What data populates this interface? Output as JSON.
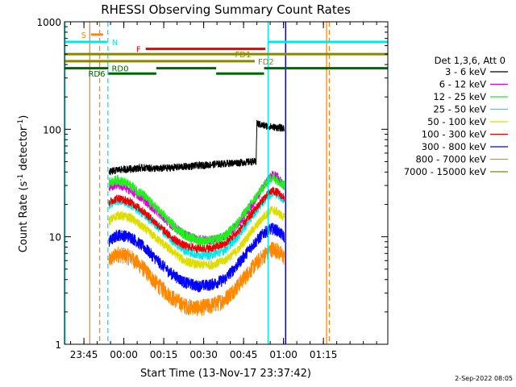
{
  "chart_data": {
    "type": "line",
    "title": "RHESSI Observing Summary Count Rates",
    "xlabel": "Start Time (13-Nov-17 23:37:42)",
    "ylabel_parts": [
      "Count Rate (s",
      "-1",
      " detector",
      "-1",
      ")"
    ],
    "x_unit": "minutes after start time",
    "xlim": [
      0,
      121.5
    ],
    "ylim": [
      1,
      1000
    ],
    "yscale": "log",
    "x_ticks": [
      {
        "x": 7.3,
        "label": "23:45"
      },
      {
        "x": 22.3,
        "label": "00:00"
      },
      {
        "x": 37.3,
        "label": "00:15"
      },
      {
        "x": 52.3,
        "label": "00:30"
      },
      {
        "x": 67.3,
        "label": "00:45"
      },
      {
        "x": 82.3,
        "label": "01:00"
      },
      {
        "x": 97.3,
        "label": "01:15"
      }
    ],
    "y_ticks": [
      {
        "y": 1,
        "label": "1"
      },
      {
        "y": 10,
        "label": "10"
      },
      {
        "y": 100,
        "label": "100"
      },
      {
        "y": 1000,
        "label": "1000"
      }
    ],
    "legend": {
      "position": "right",
      "title": "Det 1,3,6, Att 0",
      "entries": [
        {
          "label": "3 - 6 keV",
          "color": "#000000"
        },
        {
          "label": "6 - 12 keV",
          "color": "#e000e0"
        },
        {
          "label": "12 - 25 keV",
          "color": "#22ee22"
        },
        {
          "label": "25 - 50 keV",
          "color": "#00e8e8"
        },
        {
          "label": "50 - 100 keV",
          "color": "#dddd00"
        },
        {
          "label": "100 - 300 keV",
          "color": "#ee0000"
        },
        {
          "label": "300 - 800 keV",
          "color": "#0000ff"
        },
        {
          "label": "800 - 7000 keV",
          "color": "#ff8800"
        },
        {
          "label": "7000 - 15000 keV",
          "color": "#888800"
        }
      ]
    },
    "series": [
      {
        "name": "3 - 6 keV",
        "color": "#000000",
        "noise": 0.08,
        "x": [
          16.7,
          20,
          25,
          30,
          35,
          40,
          45,
          50,
          55,
          60,
          65,
          70,
          72,
          72.3,
          75,
          80,
          82.6
        ],
        "y": [
          40,
          42,
          43,
          44,
          43,
          44,
          45,
          46,
          47,
          48,
          49,
          50,
          50,
          113,
          108,
          104,
          102
        ]
      },
      {
        "name": "6 - 12 keV",
        "color": "#e000e0",
        "noise": 0.1,
        "x": [
          16.7,
          20,
          25,
          30,
          35,
          40,
          45,
          50,
          55,
          60,
          65,
          70,
          75,
          78,
          80,
          82.6
        ],
        "y": [
          29,
          31,
          27,
          22,
          17,
          13,
          10.5,
          9.5,
          9.3,
          10,
          13,
          19,
          30,
          38,
          36,
          30
        ]
      },
      {
        "name": "12 - 25 keV",
        "color": "#22ee22",
        "noise": 0.11,
        "x": [
          16.7,
          20,
          25,
          30,
          35,
          40,
          45,
          50,
          55,
          60,
          65,
          70,
          75,
          78,
          80,
          82.6
        ],
        "y": [
          32,
          34,
          30,
          24,
          18,
          13.5,
          10.5,
          9.3,
          9.2,
          10,
          13.5,
          20,
          30,
          36,
          34,
          30
        ]
      },
      {
        "name": "25 - 50 keV",
        "color": "#00e8e8",
        "noise": 0.1,
        "x": [
          16.7,
          20,
          25,
          30,
          35,
          40,
          45,
          50,
          55,
          60,
          65,
          70,
          75,
          78,
          80,
          82.6
        ],
        "y": [
          20,
          22,
          20,
          16,
          12.5,
          9.5,
          7.5,
          6.8,
          6.8,
          7.5,
          10,
          15,
          22,
          26,
          25,
          22
        ]
      },
      {
        "name": "50 - 100 keV",
        "color": "#dddd00",
        "noise": 0.1,
        "x": [
          16.7,
          20,
          25,
          30,
          35,
          40,
          45,
          50,
          55,
          60,
          65,
          70,
          75,
          78,
          80,
          82.6
        ],
        "y": [
          14,
          16,
          15,
          12,
          9.5,
          7.5,
          6,
          5.5,
          5.5,
          6,
          7.5,
          11,
          15.5,
          18,
          17,
          15
        ]
      },
      {
        "name": "100 - 300 keV",
        "color": "#ee0000",
        "noise": 0.09,
        "x": [
          16.7,
          20,
          25,
          30,
          35,
          40,
          45,
          50,
          55,
          60,
          65,
          70,
          75,
          78,
          80,
          82.6
        ],
        "y": [
          21,
          23,
          21,
          17,
          13,
          10,
          8.3,
          7.8,
          7.8,
          8.5,
          11,
          16,
          23,
          27,
          26,
          23
        ]
      },
      {
        "name": "300 - 800 keV",
        "color": "#0000ff",
        "noise": 0.13,
        "x": [
          16.7,
          20,
          25,
          30,
          35,
          40,
          45,
          50,
          55,
          60,
          65,
          70,
          75,
          78,
          80,
          82.6
        ],
        "y": [
          9,
          10.5,
          10,
          8,
          6,
          4.6,
          3.8,
          3.5,
          3.6,
          4,
          5.5,
          8,
          11,
          12,
          11.5,
          10
        ]
      },
      {
        "name": "800 - 7000 keV",
        "color": "#ff8800",
        "noise": 0.18,
        "x": [
          16.7,
          20,
          25,
          30,
          35,
          40,
          45,
          50,
          55,
          60,
          65,
          70,
          75,
          78,
          80,
          82.6
        ],
        "y": [
          6,
          7,
          6.5,
          5,
          3.6,
          2.8,
          2.3,
          2.2,
          2.3,
          2.6,
          3.5,
          5,
          6.8,
          7.8,
          7.5,
          6.5
        ]
      }
    ],
    "vertical_lines": [
      {
        "x": 0.2,
        "color": "#00e8e8",
        "dashed": false
      },
      {
        "x": 9.5,
        "color": "#ff8800",
        "dashed": false
      },
      {
        "x": 13.2,
        "color": "#ff8800",
        "dashed": true
      },
      {
        "x": 16.3,
        "color": "#00e8e8",
        "dashed": true
      },
      {
        "x": 76.5,
        "color": "#00e8e8",
        "dashed": false
      },
      {
        "x": 83.1,
        "color": "#000000",
        "dashed": false
      },
      {
        "x": 83.1,
        "color": "#0000ff",
        "dashed": false
      },
      {
        "x": 98.5,
        "color": "#ff8800",
        "dashed": false
      },
      {
        "x": 99.5,
        "color": "#ff8800",
        "dashed": true
      }
    ],
    "flag_bars": [
      {
        "label": "S",
        "color": "#ff8800",
        "label_side": "left",
        "y_level": 760,
        "segments": [
          [
            10,
            14.5
          ]
        ]
      },
      {
        "label": "N",
        "color": "#00e8e8",
        "label_side": "right",
        "y_level": 650,
        "segments": [
          [
            0.2,
            16
          ],
          [
            76.5,
            121.5
          ]
        ]
      },
      {
        "label": "F",
        "color": "#ee0000",
        "label_side": "left",
        "y_level": 560,
        "segments": [
          [
            30.5,
            75.5
          ]
        ]
      },
      {
        "label": "FD1",
        "color": "#888800",
        "label_side": "end",
        "y_level": 500,
        "segments": [
          [
            0,
            121.5
          ]
        ]
      },
      {
        "label": "FD2",
        "color": "#888800",
        "label_side": "end",
        "y_level": 430,
        "segments": [
          [
            0,
            71.5
          ]
        ]
      },
      {
        "label": "RD0",
        "color": "#006600",
        "label_side": "end",
        "y_level": 370,
        "segments": [
          [
            0,
            16.5
          ],
          [
            34.5,
            57
          ],
          [
            75,
            121.5
          ]
        ]
      },
      {
        "label": "RD6",
        "color": "#006600",
        "label_side": "start",
        "y_level": 330,
        "segments": [
          [
            16.5,
            34.5
          ],
          [
            57,
            75
          ]
        ]
      }
    ]
  },
  "footer": {
    "timestamp": "2-Sep-2022 08:05"
  }
}
